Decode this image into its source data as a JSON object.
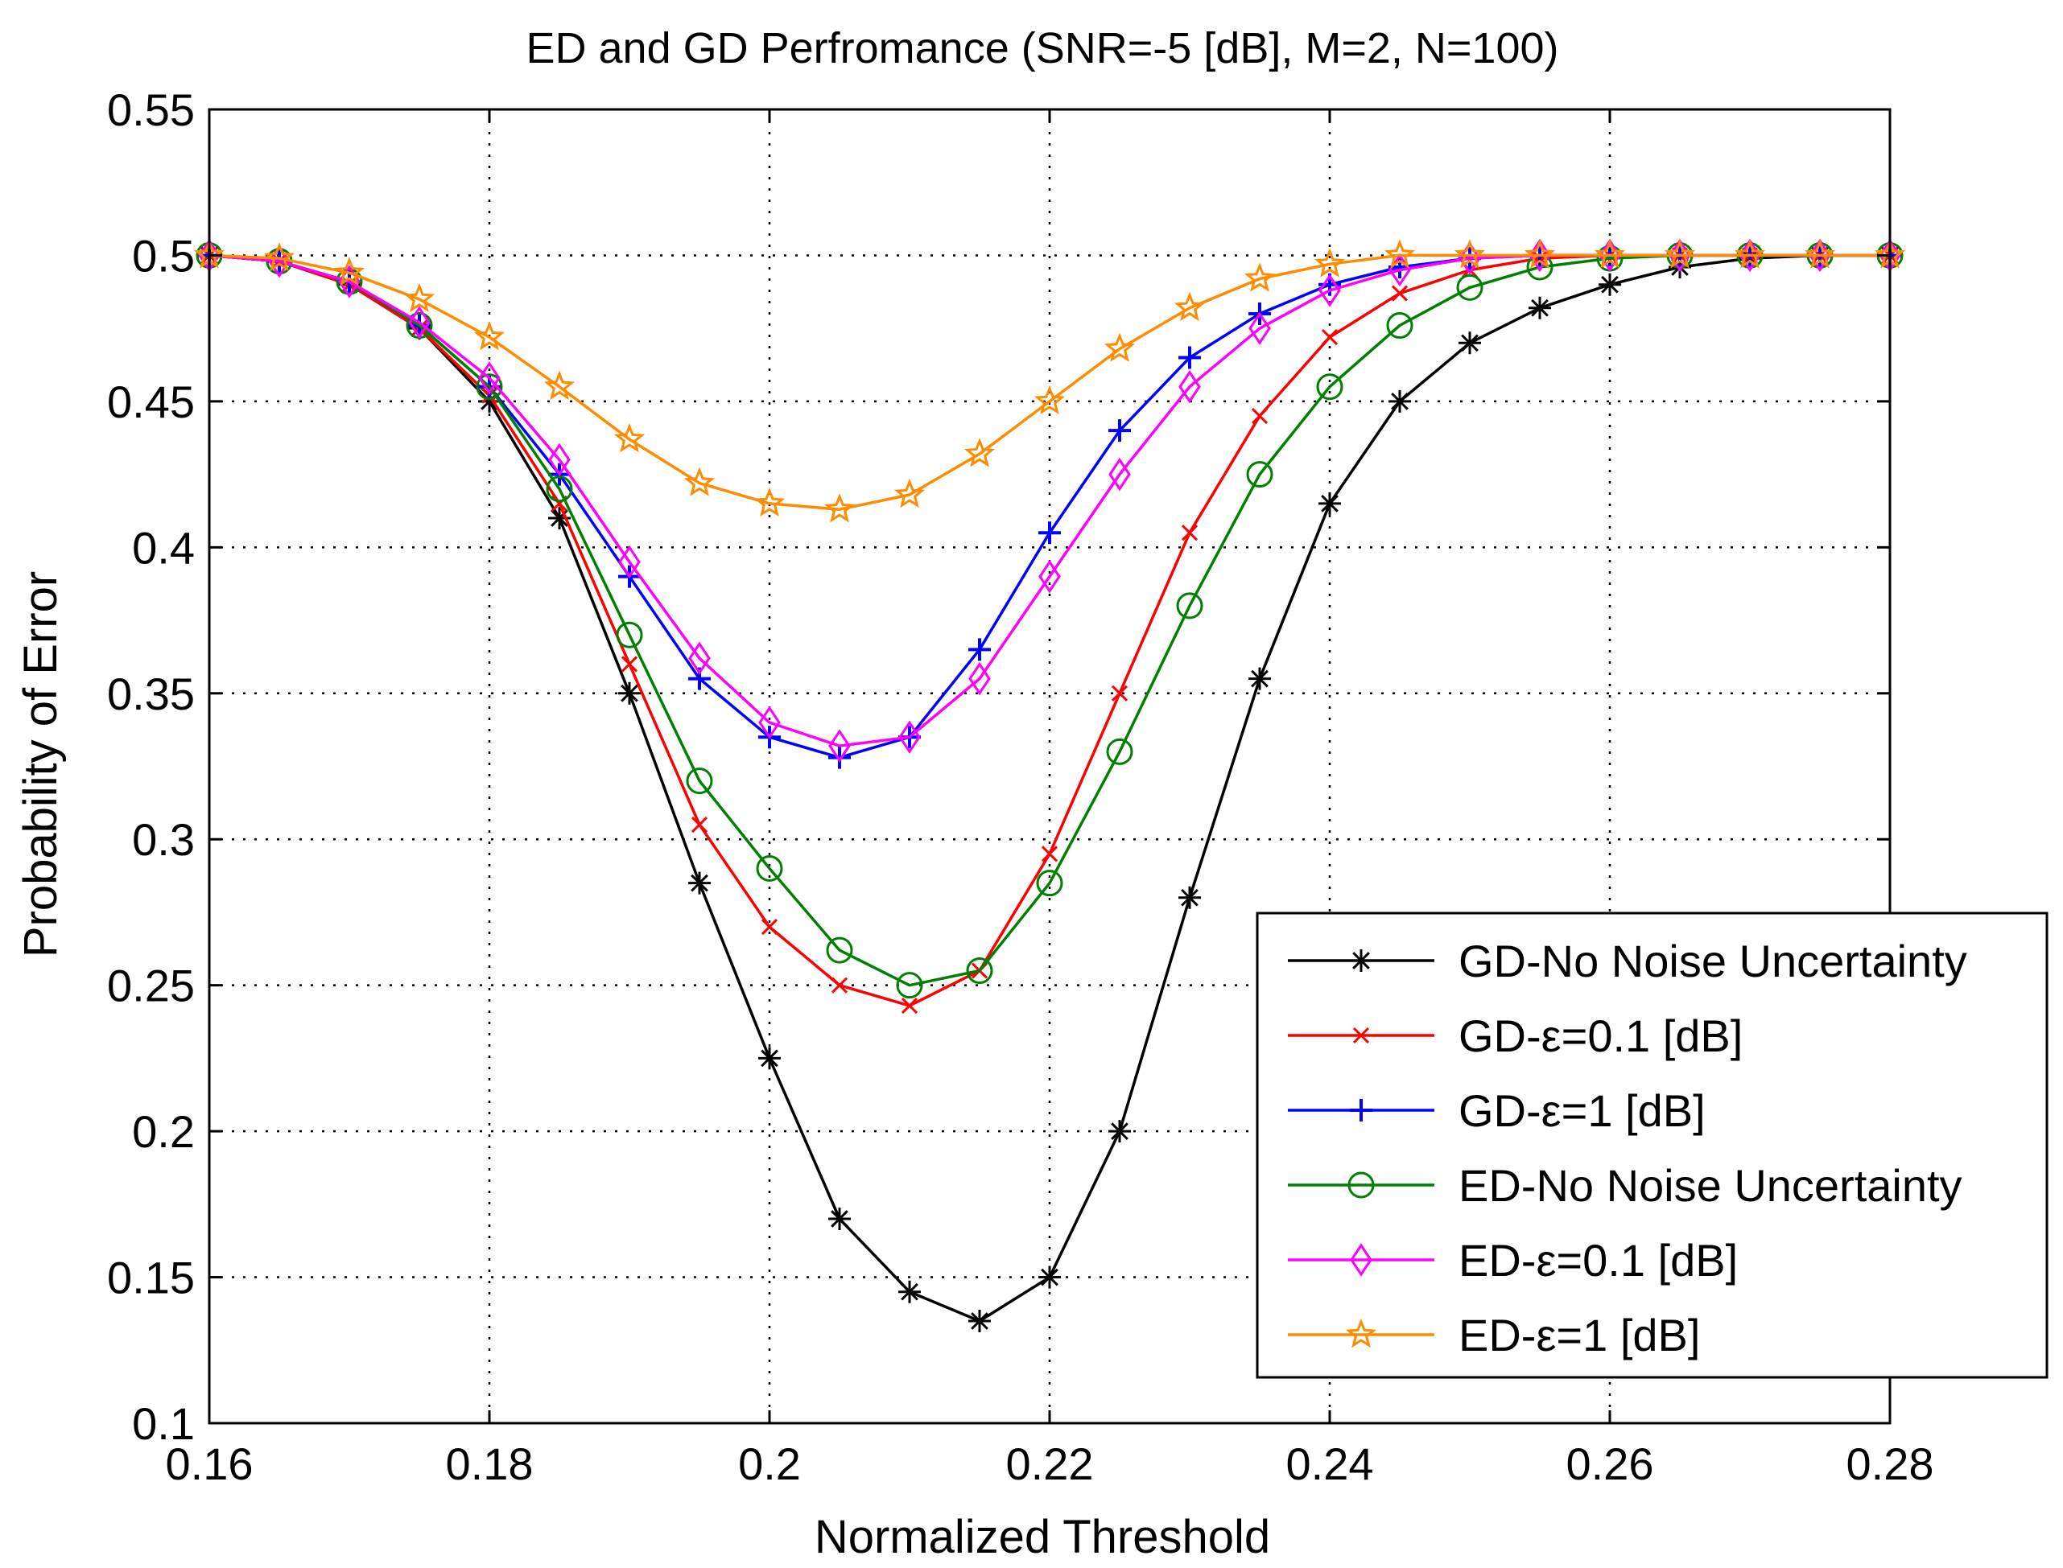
{
  "chart_data": {
    "type": "line",
    "title": "ED and GD Perfromance (SNR=-5 [dB], M=2, N=100)",
    "xlabel": "Normalized Threshold",
    "ylabel": "Probability of Error",
    "xlim": [
      0.16,
      0.28
    ],
    "ylim": [
      0.1,
      0.55
    ],
    "xticks": [
      0.16,
      0.18,
      0.2,
      0.22,
      0.24,
      0.26,
      0.28
    ],
    "xtick_labels": [
      "0.16",
      "0.18",
      "0.2",
      "0.22",
      "0.24",
      "0.26",
      "0.28"
    ],
    "yticks": [
      0.1,
      0.15,
      0.2,
      0.25,
      0.3,
      0.35,
      0.4,
      0.45,
      0.5,
      0.55
    ],
    "ytick_labels": [
      "0.1",
      "0.15",
      "0.2",
      "0.25",
      "0.3",
      "0.35",
      "0.4",
      "0.45",
      "0.5",
      "0.55"
    ],
    "grid": true,
    "legend_position": "bottom-right",
    "series": [
      {
        "name": "GD-No Noise Uncertainty",
        "legend_label": "GD-No Noise Uncertainty",
        "color": "#000000",
        "marker": "asterisk",
        "x": [
          0.16,
          0.165,
          0.17,
          0.175,
          0.18,
          0.185,
          0.19,
          0.195,
          0.2,
          0.205,
          0.21,
          0.215,
          0.22,
          0.225,
          0.23,
          0.235,
          0.24,
          0.245,
          0.25,
          0.255,
          0.26,
          0.265,
          0.27,
          0.275,
          0.28
        ],
        "y": [
          0.5,
          0.498,
          0.49,
          0.475,
          0.45,
          0.41,
          0.35,
          0.285,
          0.225,
          0.17,
          0.145,
          0.135,
          0.15,
          0.2,
          0.28,
          0.355,
          0.415,
          0.45,
          0.47,
          0.482,
          0.49,
          0.496,
          0.499,
          0.5,
          0.5
        ]
      },
      {
        "name": "GD-ε=0.1 [dB]",
        "legend_label": "GD-ε=0.1 [dB]",
        "color": "#ff0000",
        "marker": "x",
        "x": [
          0.16,
          0.165,
          0.17,
          0.175,
          0.18,
          0.185,
          0.19,
          0.195,
          0.2,
          0.205,
          0.21,
          0.215,
          0.22,
          0.225,
          0.23,
          0.235,
          0.24,
          0.245,
          0.25,
          0.255,
          0.26,
          0.265,
          0.27,
          0.275,
          0.28
        ],
        "y": [
          0.5,
          0.498,
          0.49,
          0.475,
          0.452,
          0.415,
          0.36,
          0.305,
          0.27,
          0.25,
          0.243,
          0.255,
          0.295,
          0.35,
          0.405,
          0.445,
          0.472,
          0.487,
          0.495,
          0.499,
          0.5,
          0.5,
          0.5,
          0.5,
          0.5
        ]
      },
      {
        "name": "GD-ε=1 [dB]",
        "legend_label": "GD-ε=1 [dB]",
        "color": "#0000ff",
        "marker": "plus",
        "x": [
          0.16,
          0.165,
          0.17,
          0.175,
          0.18,
          0.185,
          0.19,
          0.195,
          0.2,
          0.205,
          0.21,
          0.215,
          0.22,
          0.225,
          0.23,
          0.235,
          0.24,
          0.245,
          0.25,
          0.255,
          0.26,
          0.265,
          0.27,
          0.275,
          0.28
        ],
        "y": [
          0.5,
          0.498,
          0.491,
          0.476,
          0.455,
          0.425,
          0.39,
          0.355,
          0.335,
          0.328,
          0.335,
          0.365,
          0.405,
          0.44,
          0.465,
          0.48,
          0.49,
          0.496,
          0.499,
          0.5,
          0.5,
          0.5,
          0.5,
          0.5,
          0.5
        ]
      },
      {
        "name": "ED-No Noise Uncertainty",
        "legend_label": "ED-No Noise Uncertainty",
        "color": "#008000",
        "marker": "circle",
        "x": [
          0.16,
          0.165,
          0.17,
          0.175,
          0.18,
          0.185,
          0.19,
          0.195,
          0.2,
          0.205,
          0.21,
          0.215,
          0.22,
          0.225,
          0.23,
          0.235,
          0.24,
          0.245,
          0.25,
          0.255,
          0.26,
          0.265,
          0.27,
          0.275,
          0.28
        ],
        "y": [
          0.5,
          0.498,
          0.491,
          0.476,
          0.455,
          0.42,
          0.37,
          0.32,
          0.29,
          0.262,
          0.25,
          0.255,
          0.285,
          0.33,
          0.38,
          0.425,
          0.455,
          0.476,
          0.489,
          0.496,
          0.499,
          0.5,
          0.5,
          0.5,
          0.5
        ]
      },
      {
        "name": "ED-ε=0.1 [dB]",
        "legend_label": "ED-ε=0.1 [dB]",
        "color": "#ff00ff",
        "marker": "diamond",
        "x": [
          0.16,
          0.165,
          0.17,
          0.175,
          0.18,
          0.185,
          0.19,
          0.195,
          0.2,
          0.205,
          0.21,
          0.215,
          0.22,
          0.225,
          0.23,
          0.235,
          0.24,
          0.245,
          0.25,
          0.255,
          0.26,
          0.265,
          0.27,
          0.275,
          0.28
        ],
        "y": [
          0.5,
          0.498,
          0.491,
          0.477,
          0.458,
          0.43,
          0.395,
          0.362,
          0.34,
          0.332,
          0.335,
          0.355,
          0.39,
          0.425,
          0.455,
          0.475,
          0.488,
          0.495,
          0.499,
          0.5,
          0.5,
          0.5,
          0.5,
          0.5,
          0.5
        ]
      },
      {
        "name": "ED-ε=1 [dB]",
        "legend_label": "ED-ε=1 [dB]",
        "color": "#ff8c00",
        "marker": "star",
        "x": [
          0.16,
          0.165,
          0.17,
          0.175,
          0.18,
          0.185,
          0.19,
          0.195,
          0.2,
          0.205,
          0.21,
          0.215,
          0.22,
          0.225,
          0.23,
          0.235,
          0.24,
          0.245,
          0.25,
          0.255,
          0.26,
          0.265,
          0.27,
          0.275,
          0.28
        ],
        "y": [
          0.5,
          0.499,
          0.494,
          0.485,
          0.472,
          0.455,
          0.437,
          0.422,
          0.415,
          0.413,
          0.418,
          0.432,
          0.45,
          0.468,
          0.482,
          0.492,
          0.497,
          0.5,
          0.5,
          0.5,
          0.5,
          0.5,
          0.5,
          0.5,
          0.5
        ]
      }
    ]
  }
}
